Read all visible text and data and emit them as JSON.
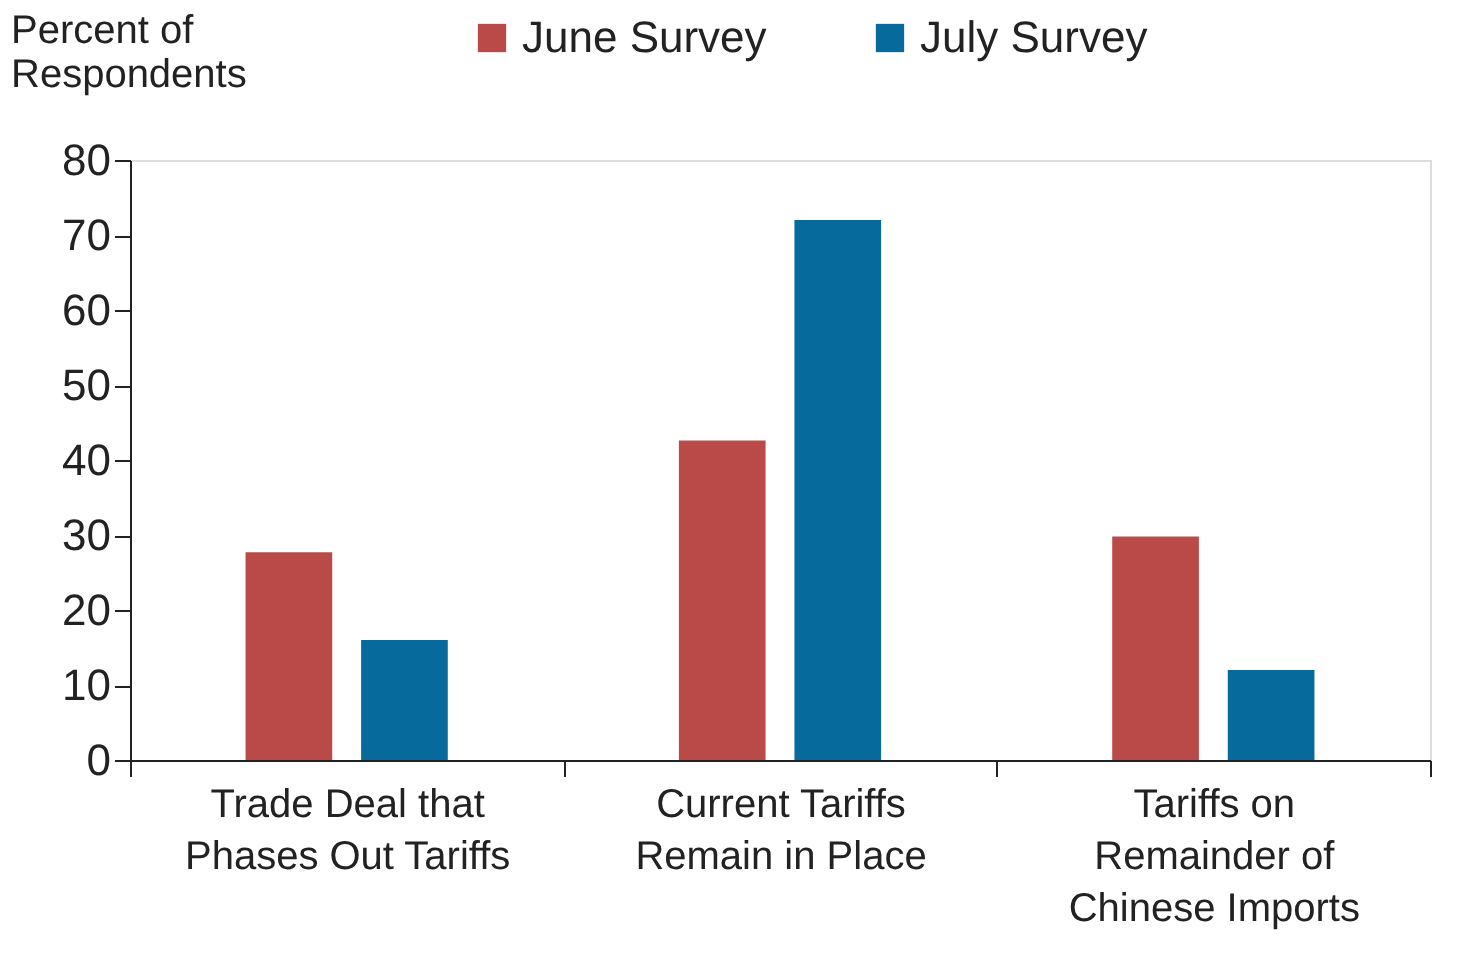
{
  "chart_data": {
    "type": "bar",
    "ylabel": "Percent of Respondents",
    "categories": [
      "Trade Deal that Phases Out Tariffs",
      "Current Tariffs Remain in Place",
      "Tariffs on Remainder of Chinese Imports"
    ],
    "series": [
      {
        "name": "June Survey",
        "color": "#b94a48",
        "values": [
          27.7,
          42.6,
          29.8
        ]
      },
      {
        "name": "July Survey",
        "color": "#066a9c",
        "values": [
          16.0,
          72.0,
          12.0
        ]
      }
    ],
    "ylim": [
      0,
      80
    ],
    "yticks": [
      0,
      10,
      20,
      30,
      40,
      50,
      60,
      70,
      80
    ],
    "grid": false,
    "legend": "top"
  }
}
